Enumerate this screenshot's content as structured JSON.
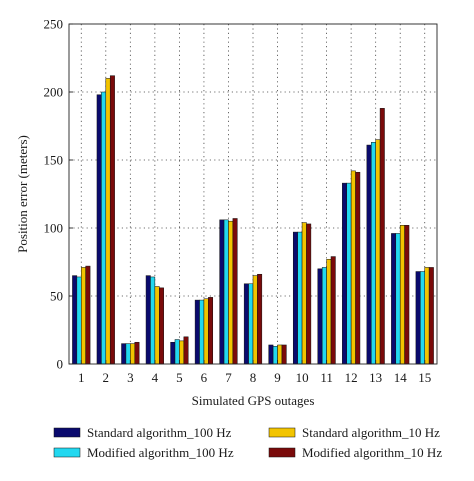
{
  "chart_data": {
    "type": "bar",
    "title": "",
    "xlabel": "Simulated GPS outages",
    "ylabel": "Position error (meters)",
    "ylim": [
      0,
      250
    ],
    "yticks": [
      0,
      50,
      100,
      150,
      200,
      250
    ],
    "grid": true,
    "legend_placement": "bottom",
    "categories": [
      "1",
      "2",
      "3",
      "4",
      "5",
      "6",
      "7",
      "8",
      "9",
      "10",
      "11",
      "12",
      "13",
      "14",
      "15"
    ],
    "series": [
      {
        "name": "Standard algorithm_100 Hz",
        "color": "#0a0a6e",
        "values": [
          65,
          198,
          15,
          65,
          16,
          47,
          106,
          59,
          14,
          97,
          70,
          133,
          161,
          96,
          68
        ]
      },
      {
        "name": "Modified algorithm_100 Hz",
        "color": "#22d8f0",
        "values": [
          64,
          200,
          15,
          64,
          18,
          47,
          106,
          59,
          13,
          97,
          71,
          133,
          163,
          96,
          68
        ]
      },
      {
        "name": "Standard algorithm_10 Hz",
        "color": "#f2c400",
        "values": [
          71,
          210,
          15,
          57,
          17,
          48,
          105,
          65,
          14,
          104,
          77,
          142,
          165,
          102,
          71
        ]
      },
      {
        "name": "Modified algorithm_10 Hz",
        "color": "#7a0a0a",
        "values": [
          72,
          212,
          16,
          56,
          20,
          49,
          107,
          66,
          14,
          103,
          79,
          141,
          188,
          102,
          71
        ]
      }
    ]
  }
}
